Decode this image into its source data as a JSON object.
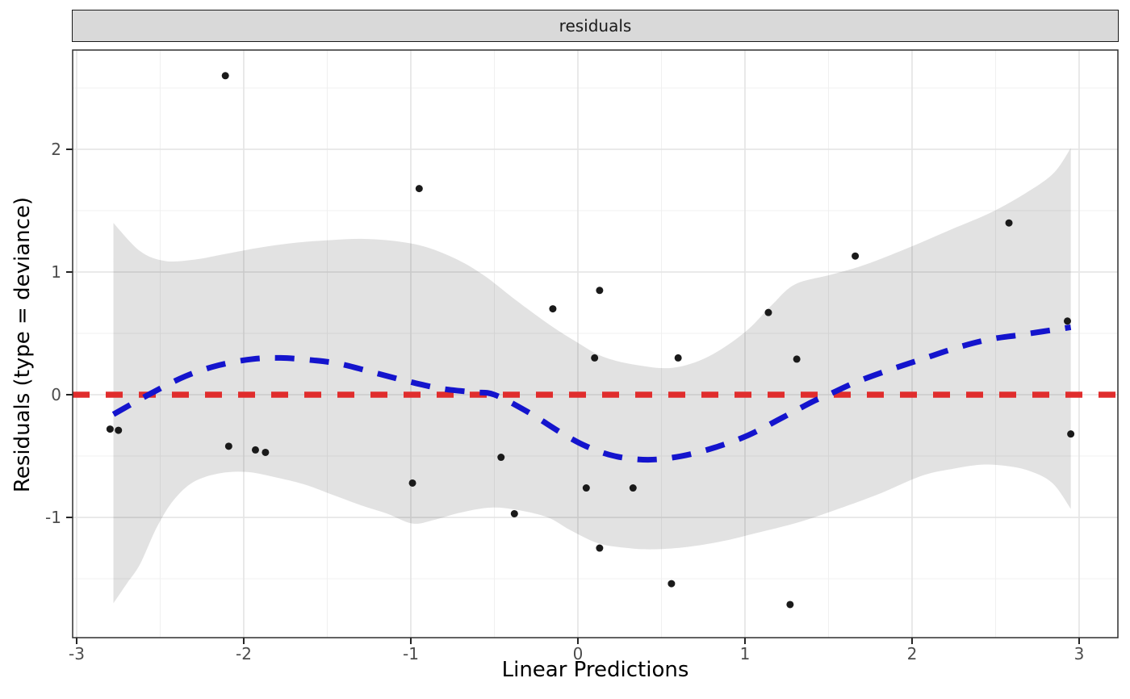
{
  "facet_strip": {
    "label": "residuals",
    "fill": "#D9D9D9",
    "border_color": "#1A1A1A",
    "text_color": "#1A1A1A"
  },
  "chart_data": {
    "type": "scatter",
    "title": "residuals",
    "xlabel": "Linear Predictions",
    "ylabel": "Residuals (type = deviance)",
    "xlim": [
      -3.024,
      3.232
    ],
    "ylim": [
      -1.98,
      2.809
    ],
    "x_ticks": [
      -3,
      -2,
      -1,
      0,
      1,
      2,
      3
    ],
    "y_ticks": [
      -1,
      0,
      1,
      2
    ],
    "minor_grid_step": 0.5,
    "grid": "major and minor gridlines on, legend off",
    "points": [
      [
        -2.8,
        -0.28
      ],
      [
        -2.75,
        -0.29
      ],
      [
        -2.11,
        2.6
      ],
      [
        -2.09,
        -0.42
      ],
      [
        -1.93,
        -0.45
      ],
      [
        -1.87,
        -0.47
      ],
      [
        -0.99,
        -0.72
      ],
      [
        -0.95,
        1.68
      ],
      [
        -0.46,
        -0.51
      ],
      [
        -0.38,
        -0.97
      ],
      [
        -0.15,
        0.7
      ],
      [
        0.05,
        -0.76
      ],
      [
        0.1,
        0.3
      ],
      [
        0.13,
        0.85
      ],
      [
        0.13,
        -1.25
      ],
      [
        0.33,
        -0.76
      ],
      [
        0.56,
        -1.54
      ],
      [
        0.6,
        0.3
      ],
      [
        1.14,
        0.67
      ],
      [
        1.27,
        -1.71
      ],
      [
        1.31,
        0.29
      ],
      [
        1.66,
        1.13
      ],
      [
        2.58,
        1.4
      ],
      [
        2.93,
        0.6
      ],
      [
        2.95,
        -0.32
      ]
    ],
    "reference_line": {
      "y": 0,
      "color": "#E02D2D",
      "linetype": "dashed",
      "width": 7.5
    },
    "smooth_line": {
      "color": "#1414CD",
      "linetype": "dashed",
      "width": 7,
      "points": [
        [
          -2.78,
          -0.16
        ],
        [
          -2.57,
          0.0
        ],
        [
          -2.35,
          0.15
        ],
        [
          -2.15,
          0.24
        ],
        [
          -1.95,
          0.29
        ],
        [
          -1.78,
          0.3
        ],
        [
          -1.58,
          0.28
        ],
        [
          -1.42,
          0.25
        ],
        [
          -1.22,
          0.18
        ],
        [
          -1.02,
          0.11
        ],
        [
          -0.82,
          0.05
        ],
        [
          -0.62,
          0.02
        ],
        [
          -0.5,
          0.0
        ],
        [
          -0.3,
          -0.14
        ],
        [
          -0.1,
          -0.31
        ],
        [
          0.05,
          -0.42
        ],
        [
          0.22,
          -0.5
        ],
        [
          0.42,
          -0.53
        ],
        [
          0.62,
          -0.5
        ],
        [
          0.82,
          -0.43
        ],
        [
          1.02,
          -0.33
        ],
        [
          1.22,
          -0.19
        ],
        [
          1.4,
          -0.06
        ],
        [
          1.5,
          0.0
        ],
        [
          1.66,
          0.1
        ],
        [
          1.86,
          0.2
        ],
        [
          2.06,
          0.29
        ],
        [
          2.26,
          0.38
        ],
        [
          2.46,
          0.45
        ],
        [
          2.66,
          0.49
        ],
        [
          2.95,
          0.55
        ]
      ]
    },
    "confidence_band": {
      "fill": "rgba(0,0,0,0.115)",
      "upper": [
        [
          -2.78,
          1.4
        ],
        [
          -2.62,
          1.17
        ],
        [
          -2.47,
          1.09
        ],
        [
          -2.3,
          1.1
        ],
        [
          -2.1,
          1.15
        ],
        [
          -1.9,
          1.2
        ],
        [
          -1.68,
          1.24
        ],
        [
          -1.48,
          1.26
        ],
        [
          -1.28,
          1.27
        ],
        [
          -1.08,
          1.25
        ],
        [
          -0.9,
          1.2
        ],
        [
          -0.72,
          1.1
        ],
        [
          -0.56,
          0.97
        ],
        [
          -0.38,
          0.78
        ],
        [
          -0.18,
          0.58
        ],
        [
          -0.02,
          0.44
        ],
        [
          0.15,
          0.31
        ],
        [
          0.36,
          0.24
        ],
        [
          0.57,
          0.22
        ],
        [
          0.78,
          0.31
        ],
        [
          1.0,
          0.51
        ],
        [
          1.16,
          0.73
        ],
        [
          1.3,
          0.9
        ],
        [
          1.52,
          0.98
        ],
        [
          1.72,
          1.06
        ],
        [
          2.0,
          1.21
        ],
        [
          2.24,
          1.35
        ],
        [
          2.48,
          1.49
        ],
        [
          2.7,
          1.66
        ],
        [
          2.85,
          1.81
        ],
        [
          2.95,
          2.01
        ]
      ],
      "lower": [
        [
          -2.78,
          -1.7
        ],
        [
          -2.7,
          -1.54
        ],
        [
          -2.62,
          -1.38
        ],
        [
          -2.52,
          -1.08
        ],
        [
          -2.42,
          -0.86
        ],
        [
          -2.3,
          -0.71
        ],
        [
          -2.14,
          -0.64
        ],
        [
          -1.98,
          -0.63
        ],
        [
          -1.82,
          -0.67
        ],
        [
          -1.64,
          -0.73
        ],
        [
          -1.48,
          -0.81
        ],
        [
          -1.3,
          -0.9
        ],
        [
          -1.14,
          -0.97
        ],
        [
          -0.99,
          -1.05
        ],
        [
          -0.86,
          -1.02
        ],
        [
          -0.7,
          -0.96
        ],
        [
          -0.52,
          -0.92
        ],
        [
          -0.36,
          -0.94
        ],
        [
          -0.18,
          -1.0
        ],
        [
          -0.05,
          -1.1
        ],
        [
          0.12,
          -1.21
        ],
        [
          0.3,
          -1.25
        ],
        [
          0.46,
          -1.26
        ],
        [
          0.66,
          -1.24
        ],
        [
          0.88,
          -1.19
        ],
        [
          1.06,
          -1.13
        ],
        [
          1.32,
          -1.04
        ],
        [
          1.56,
          -0.93
        ],
        [
          1.8,
          -0.81
        ],
        [
          2.06,
          -0.66
        ],
        [
          2.26,
          -0.6
        ],
        [
          2.42,
          -0.57
        ],
        [
          2.56,
          -0.58
        ],
        [
          2.7,
          -0.62
        ],
        [
          2.84,
          -0.72
        ],
        [
          2.95,
          -0.93
        ]
      ]
    },
    "point_color": "#1A1A1A",
    "point_radius": 4.5,
    "grid_major_color": "#E4E4E4",
    "grid_minor_color": "#F0F0F0",
    "panel_background": "#FFFFFF",
    "panel_border_color": "#2E2E2E",
    "tick_color": "#222222",
    "tick_label_color": "#4D4D4D",
    "axis_title_color": "#000000"
  }
}
